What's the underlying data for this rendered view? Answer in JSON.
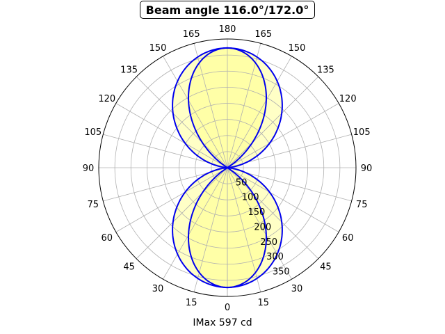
{
  "chart_data": {
    "type": "polar",
    "title": "Beam angle 116.0°/172.0°",
    "xlabel": "IMax 597 cd",
    "angle_tick_labels_right": [
      "0",
      "15",
      "30",
      "45",
      "60",
      "75",
      "90",
      "105",
      "120",
      "135",
      "150",
      "165",
      "180"
    ],
    "angle_tick_labels_left": [
      "15",
      "30",
      "45",
      "60",
      "75",
      "90",
      "105",
      "120",
      "135",
      "150",
      "165"
    ],
    "radial_ticks": [
      50,
      100,
      150,
      200,
      250,
      300,
      350
    ],
    "radial_max": 400,
    "grid": true,
    "fill_color": "#ffff80",
    "line_color": "#0000ee",
    "series": [
      {
        "name": "",
        "kind": "plane-narrow",
        "peak_cd": 372,
        "half_width_deg": 58
      },
      {
        "name": "",
        "kind": "plane-wide",
        "peak_cd": 372,
        "half_width_deg": 86
      }
    ]
  }
}
